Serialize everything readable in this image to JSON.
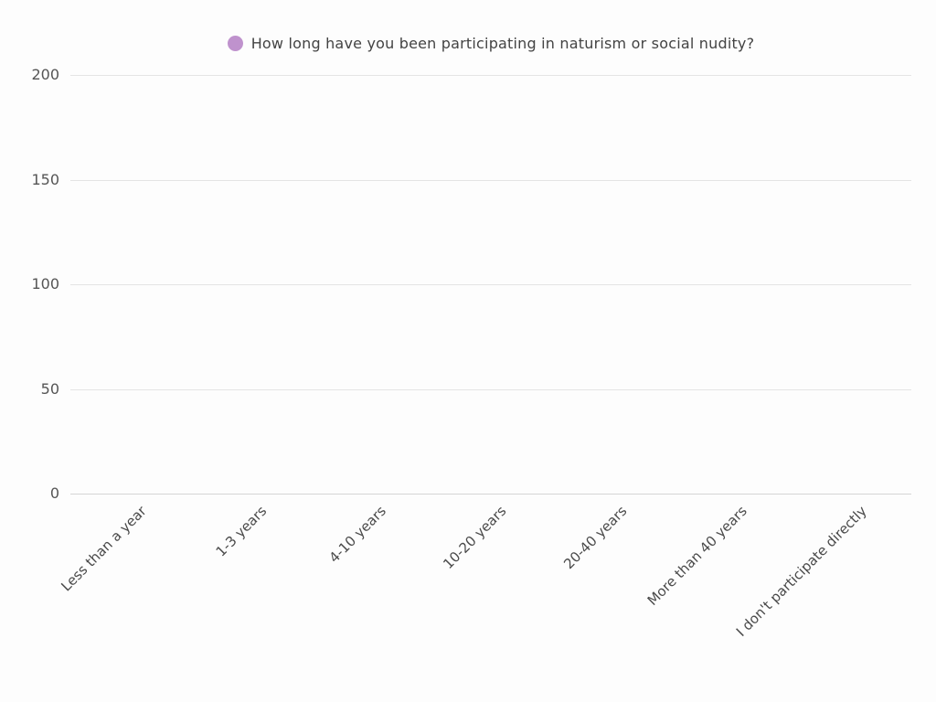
{
  "page": {
    "background_color": "#fdfdfd"
  },
  "legend": {
    "label": "How long have you been participating in naturism or social nudity?",
    "marker_color": "#bf92cd"
  },
  "chart_data": {
    "type": "bar",
    "title": "How long have you been participating in naturism or social nudity?",
    "categories": [
      "Less than a year",
      "1-3 years",
      "4-10 years",
      "10-20 years",
      "20-40 years",
      "More than 40 years",
      "I don't participate directly"
    ],
    "series": [
      {
        "name": "How long have you been participating in naturism or social nudity?",
        "color": "#bf92cd",
        "values": [
          0,
          0,
          0,
          0,
          0,
          0,
          0
        ]
      }
    ],
    "xlabel": "",
    "ylabel": "",
    "ylim": [
      0,
      200
    ],
    "yticks": [
      0,
      50,
      100,
      150,
      200
    ],
    "grid": true,
    "bars_visible": false,
    "x_label_rotation_deg": -45,
    "legend_position": "top-center"
  },
  "colors": {
    "text": "#434343",
    "axis_tick_text": "#555555",
    "x_tick_text": "#4a4a4a",
    "gridline": "#e4e4e4",
    "axis_line": "#d5d5d5"
  }
}
